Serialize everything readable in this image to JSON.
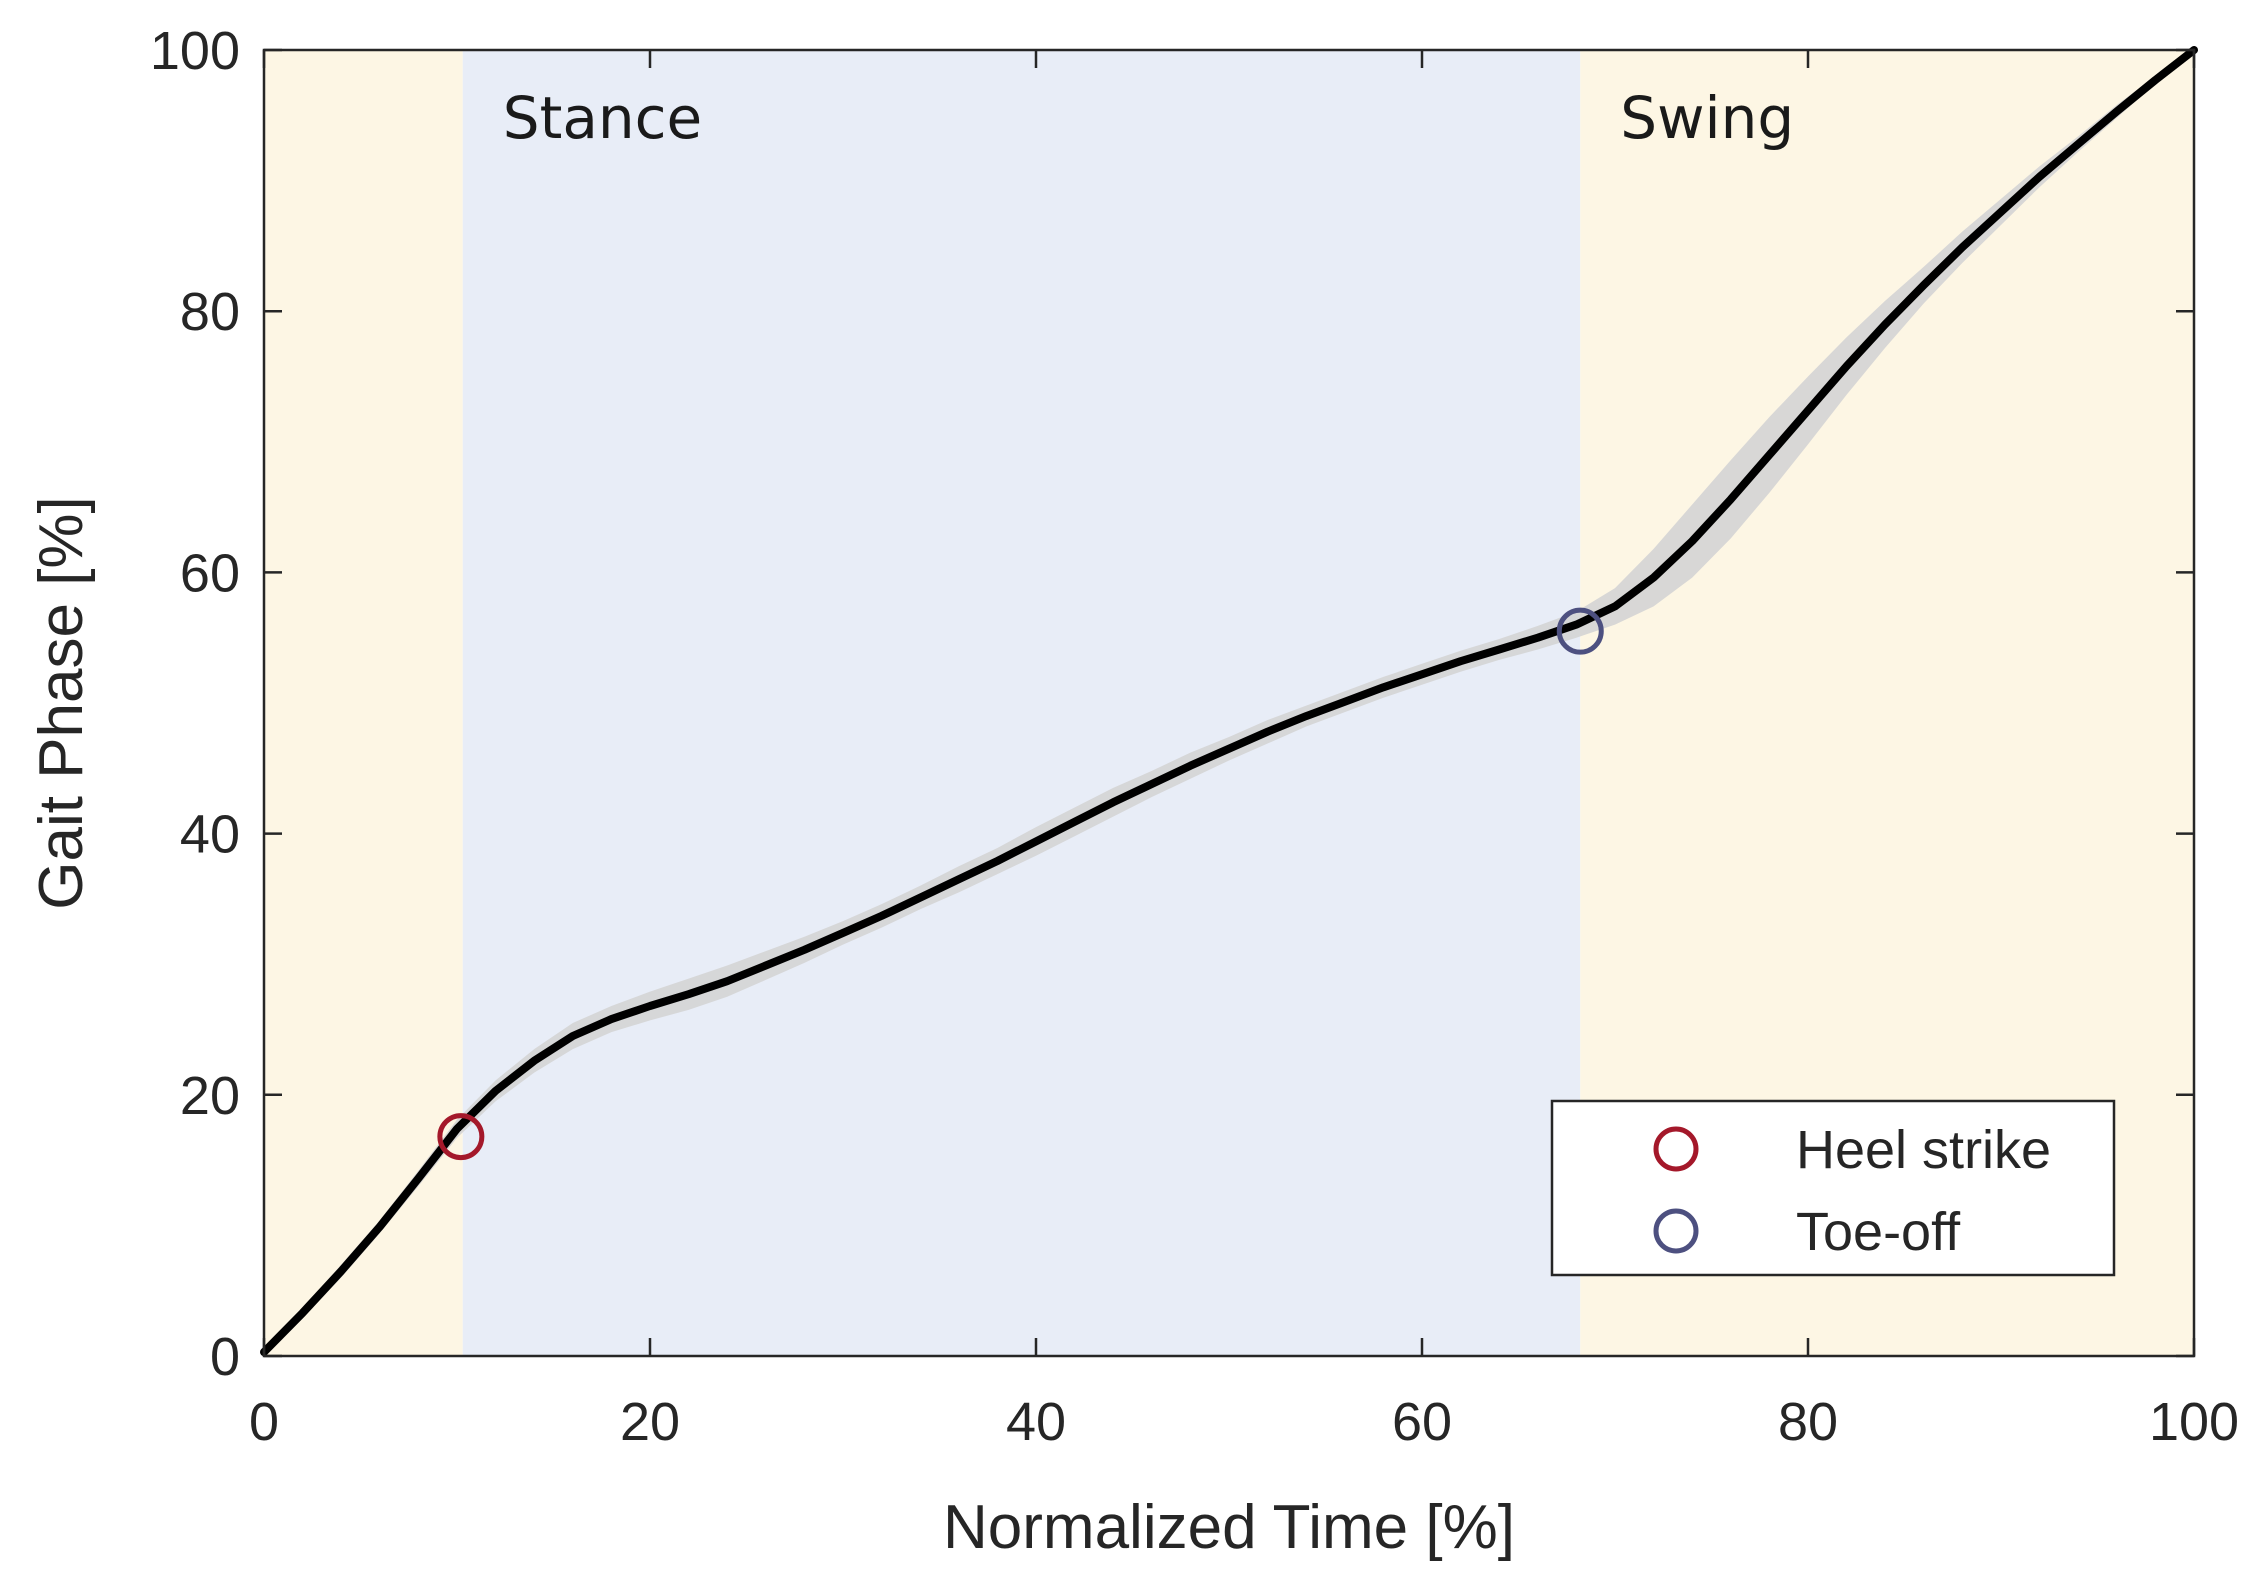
{
  "chart_data": {
    "type": "line",
    "title": "",
    "xlabel": "Normalized Time [%]",
    "ylabel": "Gait Phase [%]",
    "xlim": [
      0,
      100
    ],
    "ylim": [
      0,
      100
    ],
    "xticks": [
      "0",
      "20",
      "40",
      "60",
      "80",
      "100"
    ],
    "yticks": [
      "0",
      "20",
      "40",
      "60",
      "80",
      "100"
    ],
    "grid": false,
    "regions": [
      {
        "label": "",
        "x_start": 0,
        "x_end": 10.3,
        "color": "#fdf6e4"
      },
      {
        "label": "Stance",
        "x_start": 10.3,
        "x_end": 68.2,
        "color": "#e8edf7"
      },
      {
        "label": "Swing",
        "x_start": 68.2,
        "x_end": 100,
        "color": "#fdf6e4"
      }
    ],
    "series": [
      {
        "style": "mean line with shaded spread",
        "color": "#000000",
        "band_color": "#d4d4d4",
        "x": [
          0,
          2,
          4,
          6,
          8,
          10,
          12,
          14,
          16,
          18,
          20,
          22,
          24,
          26,
          28,
          30,
          32,
          34,
          36,
          38,
          40,
          42,
          44,
          46,
          48,
          50,
          52,
          54,
          56,
          58,
          60,
          62,
          64,
          66,
          68,
          70,
          72,
          74,
          76,
          78,
          80,
          82,
          84,
          86,
          88,
          90,
          92,
          94,
          96,
          98,
          100
        ],
        "y": [
          0.3,
          3.3,
          6.5,
          9.9,
          13.6,
          17.4,
          20.3,
          22.6,
          24.5,
          25.8,
          26.8,
          27.7,
          28.7,
          29.9,
          31.1,
          32.4,
          33.7,
          35.1,
          36.5,
          37.9,
          39.4,
          40.9,
          42.4,
          43.8,
          45.2,
          46.5,
          47.8,
          49.0,
          50.1,
          51.2,
          52.2,
          53.2,
          54.1,
          55.0,
          56.0,
          57.4,
          59.6,
          62.4,
          65.6,
          69.0,
          72.4,
          75.8,
          79.0,
          82.0,
          84.9,
          87.6,
          90.3,
          92.8,
          95.3,
          97.7,
          100.0
        ],
        "band_halfwidth": [
          0.3,
          0.4,
          0.5,
          0.5,
          0.6,
          0.7,
          0.8,
          0.9,
          1.0,
          1.0,
          1.1,
          1.2,
          1.2,
          1.1,
          1.0,
          0.9,
          0.9,
          0.9,
          1.0,
          1.0,
          1.1,
          1.1,
          1.1,
          1.0,
          1.0,
          0.9,
          0.9,
          0.8,
          0.8,
          0.8,
          0.8,
          0.8,
          0.8,
          0.9,
          1.0,
          1.4,
          2.2,
          2.8,
          3.0,
          2.9,
          2.6,
          2.2,
          1.8,
          1.4,
          1.2,
          1.0,
          0.8,
          0.6,
          0.5,
          0.3,
          0.2
        ]
      }
    ],
    "markers": [
      {
        "name": "Heel strike",
        "x": 10.2,
        "y": 16.8,
        "symbol": "circle",
        "color": "#a4182a"
      },
      {
        "name": "Toe-off",
        "x": 68.2,
        "y": 55.5,
        "symbol": "circle",
        "color": "#4d5080"
      }
    ],
    "legend": {
      "position": "bottom-right",
      "entries": [
        "Heel strike",
        "Toe-off"
      ]
    }
  }
}
